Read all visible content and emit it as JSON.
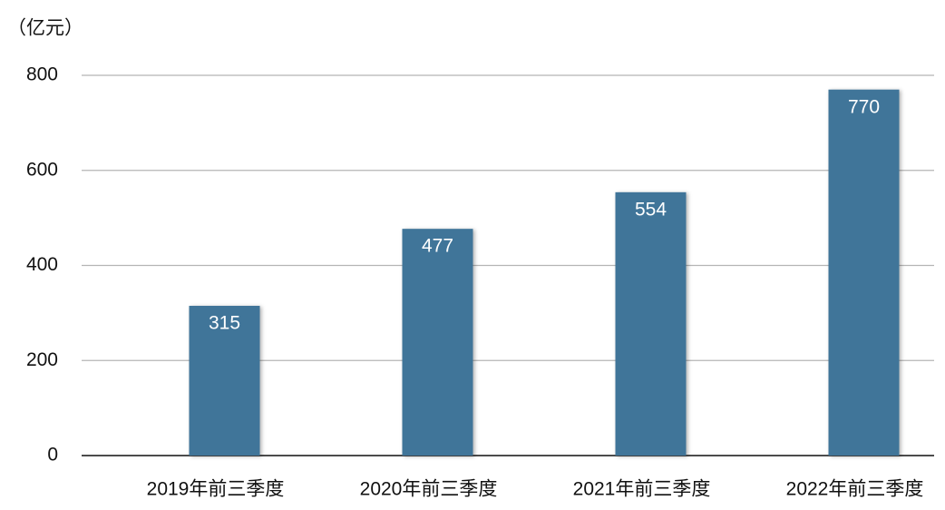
{
  "chart_data": {
    "type": "bar",
    "y_axis_label": "（亿元）",
    "categories": [
      "2019年前三季度",
      "2020年前三季度",
      "2021年前三季度",
      "2022年前三季度"
    ],
    "values": [
      315,
      477,
      554,
      770
    ],
    "color": "#3f7599",
    "ylim": [
      0,
      800
    ],
    "yticks": [
      0,
      200,
      400,
      600,
      800
    ],
    "grid": true
  }
}
